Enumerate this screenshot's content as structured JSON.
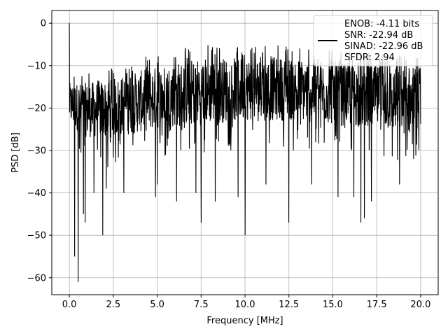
{
  "chart_data": {
    "type": "line",
    "title": "",
    "xlabel": "Frequency [MHz]",
    "ylabel": "PSD [dB]",
    "xlim": [
      -1.0,
      21.0
    ],
    "ylim": [
      -64,
      3
    ],
    "xticks": [
      0.0,
      2.5,
      5.0,
      7.5,
      10.0,
      12.5,
      15.0,
      17.5,
      20.0
    ],
    "xtick_labels": [
      "0.0",
      "2.5",
      "5.0",
      "7.5",
      "10.0",
      "12.5",
      "15.0",
      "17.5",
      "20.0"
    ],
    "yticks": [
      0,
      -10,
      -20,
      -30,
      -40,
      -50,
      -60
    ],
    "ytick_labels": [
      "0",
      "−10",
      "−20",
      "−30",
      "−40",
      "−50",
      "−60"
    ],
    "grid": true,
    "legend_position": "top-right",
    "series": [
      {
        "legend_lines": [
          "ENOB: -4.11 bits",
          "SNR: -22.94 dB",
          "SINAD: -22.96 dB",
          "SFDR: 2.94"
        ],
        "color": "#000000",
        "x_range": [
          0.0,
          20.0
        ],
        "peak": {
          "x": 0.0,
          "y": 0.0
        },
        "noise_band_lower": [
          [
            0.0,
            -24
          ],
          [
            1.0,
            -27
          ],
          [
            2.5,
            -27
          ],
          [
            5.0,
            -25
          ],
          [
            7.5,
            -24
          ],
          [
            10.0,
            -23
          ],
          [
            12.5,
            -23
          ],
          [
            15.0,
            -24
          ],
          [
            17.5,
            -25
          ],
          [
            20.0,
            -27
          ]
        ],
        "noise_band_upper": [
          [
            0.0,
            -14
          ],
          [
            1.0,
            -14
          ],
          [
            2.5,
            -13
          ],
          [
            5.0,
            -10
          ],
          [
            7.5,
            -8
          ],
          [
            10.0,
            -8
          ],
          [
            12.5,
            -8
          ],
          [
            15.0,
            -9
          ],
          [
            17.5,
            -10
          ],
          [
            20.0,
            -11
          ]
        ],
        "deep_dips": [
          [
            0.3,
            -55
          ],
          [
            0.5,
            -61
          ],
          [
            0.8,
            -45
          ],
          [
            0.9,
            -47
          ],
          [
            1.4,
            -40
          ],
          [
            1.9,
            -50
          ],
          [
            2.1,
            -39
          ],
          [
            3.1,
            -40
          ],
          [
            4.9,
            -41
          ],
          [
            5.0,
            -38
          ],
          [
            6.1,
            -42
          ],
          [
            7.2,
            -40
          ],
          [
            7.5,
            -47
          ],
          [
            8.3,
            -42
          ],
          [
            9.6,
            -41
          ],
          [
            10.0,
            -50
          ],
          [
            11.2,
            -38
          ],
          [
            12.5,
            -47
          ],
          [
            13.8,
            -38
          ],
          [
            15.3,
            -41
          ],
          [
            16.2,
            -41
          ],
          [
            16.6,
            -47
          ],
          [
            16.8,
            -46
          ],
          [
            17.2,
            -42
          ],
          [
            18.8,
            -38
          ]
        ]
      }
    ]
  }
}
